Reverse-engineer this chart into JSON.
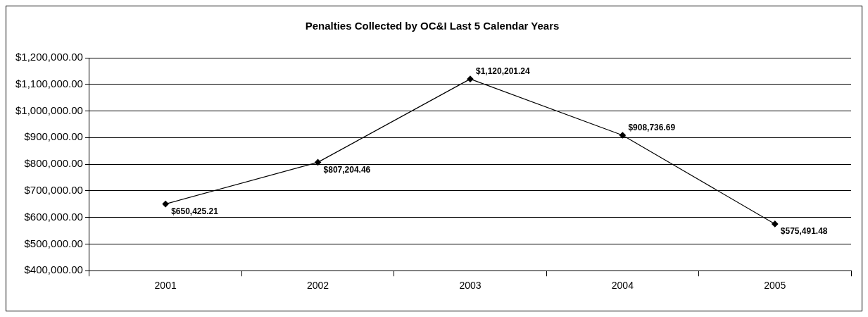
{
  "chart_data": {
    "type": "line",
    "title": "Penalties Collected by OC&I Last 5 Calendar Years",
    "categories": [
      "2001",
      "2002",
      "2003",
      "2004",
      "2005"
    ],
    "series": [
      {
        "color": "#000000",
        "values": [
          650425.21,
          807204.46,
          1120201.24,
          908736.69,
          575491.48
        ],
        "value_labels": [
          "$650,425.21",
          "$807,204.46",
          "$1,120,201.24",
          "$908,736.69",
          "$575,491.48"
        ]
      }
    ],
    "ylim": [
      400000,
      1200000
    ],
    "yticks": [
      {
        "value": 400000,
        "label": "$400,000.00"
      },
      {
        "value": 500000,
        "label": "$500,000.00"
      },
      {
        "value": 600000,
        "label": "$600,000.00"
      },
      {
        "value": 700000,
        "label": "$700,000.00"
      },
      {
        "value": 800000,
        "label": "$800,000.00"
      },
      {
        "value": 900000,
        "label": "$900,000.00"
      },
      {
        "value": 1000000,
        "label": "$1,000,000.00"
      },
      {
        "value": 1100000,
        "label": "$1,100,000.00"
      },
      {
        "value": 1200000,
        "label": "$1,200,000.00"
      }
    ],
    "grid": "y",
    "legend": false,
    "marker": "diamond",
    "line_style": "solid"
  }
}
